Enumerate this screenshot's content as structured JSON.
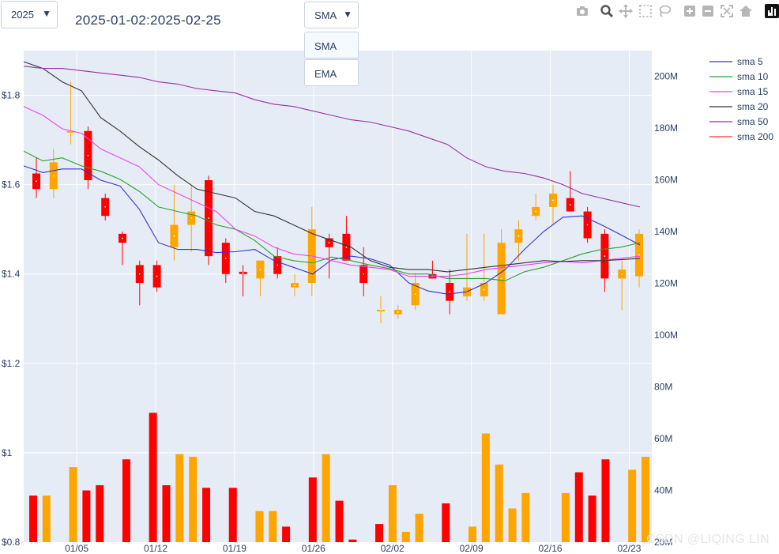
{
  "controls": {
    "year_dropdown": {
      "value": "2025"
    },
    "range_label": "2025-01-02:2025-02-25",
    "ma_dropdown": {
      "value": "SMA",
      "options": [
        "SMA",
        "EMA"
      ]
    }
  },
  "modebar": {
    "icons": [
      "camera-icon",
      "zoom-icon",
      "pan-icon",
      "box-select-icon",
      "lasso-icon",
      "zoom-in-icon",
      "zoom-out-icon",
      "autoscale-icon",
      "reset-axes-icon",
      "plotly-logo-icon"
    ]
  },
  "watermark": "CSDN @LIQING LIN",
  "colors": {
    "plot_bg": "#e5ecf6",
    "up": "#FFA500",
    "down": "#FF0000",
    "sma5": "#3333cc",
    "sma10": "#2ca02c",
    "sma15": "#ee44ee",
    "sma20": "#333333",
    "sma50": "#9b30a0",
    "sma200": "#ff3333"
  },
  "chart_data": {
    "type": "candlestick",
    "x_ticks": [
      "01/05",
      "01/12",
      "01/19",
      "01/26",
      "02/02",
      "02/09",
      "02/16",
      "02/23"
    ],
    "y_price_ticks": [
      "$0.8",
      "$1",
      "$1.2",
      "$1.4",
      "$1.6",
      "$1.8"
    ],
    "y_price_range": [
      0.8,
      1.9
    ],
    "y_volume_ticks": [
      "20M",
      "40M",
      "60M",
      "80M",
      "100M",
      "120M",
      "140M",
      "160M",
      "180M",
      "200M"
    ],
    "y_volume_range": [
      20,
      210
    ],
    "legend": [
      "sma 5",
      "sma 10",
      "sma 15",
      "sma 20",
      "sma 50",
      "sma 200"
    ],
    "candles": [
      {
        "date": "2025-01-02",
        "open": 1.625,
        "high": 1.66,
        "low": 1.57,
        "close": 1.59
      },
      {
        "date": "2025-01-03",
        "open": 1.59,
        "high": 1.68,
        "low": 1.57,
        "close": 1.65
      },
      {
        "date": "2025-01-06",
        "open": 1.72,
        "high": 1.83,
        "low": 1.69,
        "close": 1.72
      },
      {
        "date": "2025-01-07",
        "open": 1.72,
        "high": 1.73,
        "low": 1.59,
        "close": 1.61
      },
      {
        "date": "2025-01-08",
        "open": 1.57,
        "high": 1.58,
        "low": 1.52,
        "close": 1.53
      },
      {
        "date": "2025-01-10",
        "open": 1.49,
        "high": 1.495,
        "low": 1.42,
        "close": 1.47
      },
      {
        "date": "2025-01-13",
        "open": 1.42,
        "high": 1.43,
        "low": 1.33,
        "close": 1.38
      },
      {
        "date": "2025-01-14",
        "open": 1.42,
        "high": 1.43,
        "low": 1.36,
        "close": 1.37
      },
      {
        "date": "2025-01-15",
        "open": 1.46,
        "high": 1.6,
        "low": 1.43,
        "close": 1.51
      },
      {
        "date": "2025-01-16",
        "open": 1.51,
        "high": 1.6,
        "low": 1.45,
        "close": 1.54
      },
      {
        "date": "2025-01-17",
        "open": 1.61,
        "high": 1.62,
        "low": 1.42,
        "close": 1.44
      },
      {
        "date": "2025-01-21",
        "open": 1.47,
        "high": 1.48,
        "low": 1.38,
        "close": 1.4
      },
      {
        "date": "2025-01-22",
        "open": 1.405,
        "high": 1.42,
        "low": 1.35,
        "close": 1.4
      },
      {
        "date": "2025-01-23",
        "open": 1.39,
        "high": 1.43,
        "low": 1.35,
        "close": 1.43
      },
      {
        "date": "2025-01-24",
        "open": 1.44,
        "high": 1.46,
        "low": 1.39,
        "close": 1.4
      },
      {
        "date": "2025-01-27",
        "open": 1.37,
        "high": 1.4,
        "low": 1.35,
        "close": 1.38
      },
      {
        "date": "2025-01-28",
        "open": 1.38,
        "high": 1.55,
        "low": 1.35,
        "close": 1.5
      },
      {
        "date": "2025-01-29",
        "open": 1.48,
        "high": 1.49,
        "low": 1.39,
        "close": 1.46
      },
      {
        "date": "2025-01-30",
        "open": 1.49,
        "high": 1.53,
        "low": 1.43,
        "close": 1.43
      },
      {
        "date": "2025-01-31",
        "open": 1.42,
        "high": 1.46,
        "low": 1.35,
        "close": 1.38
      },
      {
        "date": "2025-02-03",
        "open": 1.32,
        "high": 1.35,
        "low": 1.29,
        "close": 1.32
      },
      {
        "date": "2025-02-04",
        "open": 1.31,
        "high": 1.33,
        "low": 1.3,
        "close": 1.32
      },
      {
        "date": "2025-02-05",
        "open": 1.33,
        "high": 1.4,
        "low": 1.32,
        "close": 1.38
      },
      {
        "date": "2025-02-06",
        "open": 1.4,
        "high": 1.43,
        "low": 1.39,
        "close": 1.39
      },
      {
        "date": "2025-02-07",
        "open": 1.38,
        "high": 1.41,
        "low": 1.31,
        "close": 1.34
      },
      {
        "date": "2025-02-10",
        "open": 1.35,
        "high": 1.49,
        "low": 1.34,
        "close": 1.37
      },
      {
        "date": "2025-02-11",
        "open": 1.35,
        "high": 1.49,
        "low": 1.34,
        "close": 1.38
      },
      {
        "date": "2025-02-12",
        "open": 1.31,
        "high": 1.5,
        "low": 1.31,
        "close": 1.47
      },
      {
        "date": "2025-02-13",
        "open": 1.47,
        "high": 1.52,
        "low": 1.43,
        "close": 1.5
      },
      {
        "date": "2025-02-14",
        "open": 1.53,
        "high": 1.58,
        "low": 1.52,
        "close": 1.55
      },
      {
        "date": "2025-02-18",
        "open": 1.55,
        "high": 1.6,
        "low": 1.51,
        "close": 1.58
      },
      {
        "date": "2025-02-19",
        "open": 1.57,
        "high": 1.63,
        "low": 1.54,
        "close": 1.54
      },
      {
        "date": "2025-02-20",
        "open": 1.54,
        "high": 1.55,
        "low": 1.47,
        "close": 1.48
      },
      {
        "date": "2025-02-21",
        "open": 1.49,
        "high": 1.5,
        "low": 1.36,
        "close": 1.39
      },
      {
        "date": "2025-02-24",
        "open": 1.39,
        "high": 1.43,
        "low": 1.32,
        "close": 1.41
      },
      {
        "date": "2025-02-25",
        "open": 1.395,
        "high": 1.5,
        "low": 1.37,
        "close": 1.49
      }
    ],
    "volume_millions": [
      38,
      38,
      0,
      49,
      40,
      42,
      0,
      52,
      0,
      70,
      42,
      54,
      53,
      41,
      0,
      41,
      0,
      32,
      32,
      26,
      0,
      45,
      54,
      36,
      21,
      0,
      27,
      42,
      24,
      31,
      0,
      35,
      0,
      26,
      62,
      50,
      33,
      39,
      0,
      0,
      39,
      47,
      38,
      52,
      0,
      48,
      53
    ],
    "volume_dates": [
      "2025-01-02",
      "2025-01-03",
      "2025-01-04",
      "2025-01-06",
      "2025-01-07",
      "2025-01-08",
      "2025-01-09",
      "2025-01-10",
      "2025-01-11",
      "2025-01-13",
      "2025-01-14",
      "2025-01-15",
      "2025-01-16",
      "2025-01-17",
      "2025-01-20",
      "2025-01-21",
      "2025-01-22",
      "2025-01-23",
      "2025-01-23b",
      "2025-01-24",
      "2025-01-25",
      "2025-01-27",
      "2025-01-28",
      "2025-01-29",
      "2025-01-30",
      "2025-01-31",
      "2025-02-03",
      "2025-02-04",
      "2025-02-05",
      "2025-02-06",
      "2025-02-07",
      "2025-02-07b",
      "2025-02-08",
      "2025-02-10",
      "2025-02-11",
      "2025-02-12",
      "2025-02-13",
      "2025-02-14",
      "2025-02-15",
      "2025-02-16",
      "2025-02-18",
      "2025-02-19",
      "2025-02-20",
      "2025-02-21",
      "2025-02-22",
      "2025-02-24",
      "2025-02-25"
    ],
    "volume_colors": [
      "down",
      "up",
      "",
      "up",
      "down",
      "down",
      "",
      "down",
      "",
      "down",
      "down",
      "up",
      "up",
      "down",
      "",
      "down",
      "",
      "up",
      "up",
      "down",
      "",
      "down",
      "up",
      "down",
      "down",
      "",
      "down",
      "up",
      "up",
      "up",
      "",
      "down",
      "",
      "up",
      "up",
      "up",
      "up",
      "up",
      "",
      "",
      "up",
      "down",
      "down",
      "down",
      "",
      "up",
      "up"
    ],
    "series": [
      {
        "name": "sma 5",
        "color_key": "sma5",
        "values": [
          1.642,
          1.627,
          1.635,
          1.635,
          1.61,
          1.597,
          1.545,
          1.47,
          1.455,
          1.455,
          1.448,
          1.45,
          1.455,
          1.43,
          1.415,
          1.4,
          1.432,
          1.44,
          1.434,
          1.42,
          1.38,
          1.362,
          1.355,
          1.36,
          1.38,
          1.41,
          1.455,
          1.495,
          1.527,
          1.53,
          1.51,
          1.488,
          1.465
        ]
      },
      {
        "name": "sma 10",
        "color_key": "sma10",
        "values": [
          1.675,
          1.653,
          1.66,
          1.642,
          1.63,
          1.612,
          1.585,
          1.55,
          1.54,
          1.53,
          1.51,
          1.5,
          1.475,
          1.44,
          1.43,
          1.425,
          1.438,
          1.43,
          1.42,
          1.412,
          1.4,
          1.4,
          1.39,
          1.39,
          1.39,
          1.385,
          1.405,
          1.415,
          1.43,
          1.445,
          1.455,
          1.46,
          1.47
        ]
      },
      {
        "name": "sma 15",
        "color_key": "sma15",
        "values": [
          1.775,
          1.755,
          1.725,
          1.715,
          1.68,
          1.66,
          1.64,
          1.6,
          1.58,
          1.56,
          1.54,
          1.5,
          1.485,
          1.46,
          1.445,
          1.44,
          1.43,
          1.42,
          1.415,
          1.41,
          1.395,
          1.395,
          1.395,
          1.4,
          1.41,
          1.415,
          1.42,
          1.425,
          1.428,
          1.425,
          1.43,
          1.435,
          1.44
        ]
      },
      {
        "name": "sma 20",
        "color_key": "sma20",
        "values": [
          1.875,
          1.86,
          1.83,
          1.81,
          1.75,
          1.72,
          1.685,
          1.655,
          1.62,
          1.59,
          1.58,
          1.57,
          1.54,
          1.53,
          1.51,
          1.49,
          1.475,
          1.46,
          1.43,
          1.415,
          1.41,
          1.41,
          1.405,
          1.41,
          1.415,
          1.42,
          1.425,
          1.43,
          1.428,
          1.43,
          1.43,
          1.432,
          1.435
        ]
      },
      {
        "name": "sma 50",
        "color_key": "sma50",
        "values": [
          1.865,
          1.86,
          1.86,
          1.855,
          1.85,
          1.845,
          1.84,
          1.83,
          1.825,
          1.815,
          1.81,
          1.805,
          1.79,
          1.78,
          1.775,
          1.765,
          1.755,
          1.745,
          1.74,
          1.73,
          1.72,
          1.705,
          1.69,
          1.66,
          1.64,
          1.63,
          1.625,
          1.615,
          1.6,
          1.58,
          1.57,
          1.56,
          1.55
        ]
      }
    ]
  }
}
